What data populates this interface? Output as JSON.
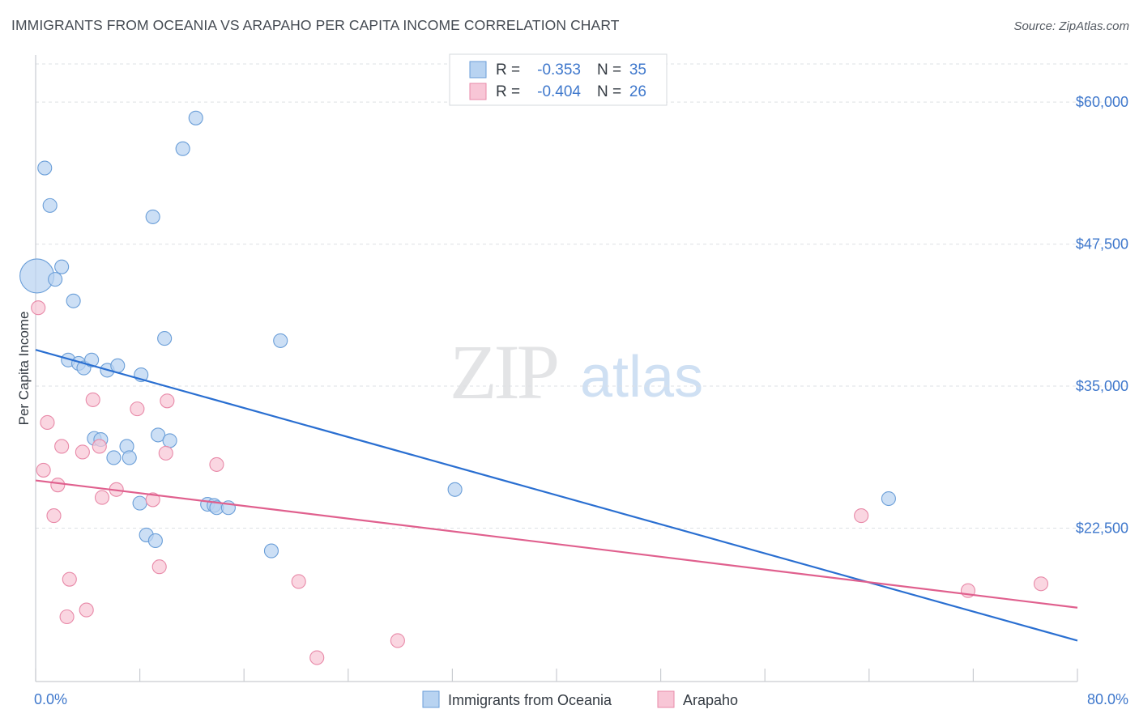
{
  "title": "IMMIGRANTS FROM OCEANIA VS ARAPAHO PER CAPITA INCOME CORRELATION CHART",
  "source": "Source: ZipAtlas.com",
  "watermark": {
    "zip": "ZIP",
    "atlas": "atlas"
  },
  "colors": {
    "blue_fill": "#b8d3f1",
    "blue_stroke": "#6a9ed8",
    "blue_line": "#2a6fd1",
    "pink_fill": "#f8c6d6",
    "pink_stroke": "#e889a8",
    "pink_line": "#e0608e",
    "tick_label": "#3f78cc",
    "grid": "#dde0e4",
    "axis": "#c9ccd1"
  },
  "legend": {
    "r_label": "R =",
    "n_label": "N =",
    "entries": [
      {
        "r": "-0.353",
        "n": "35"
      },
      {
        "r": "-0.404",
        "n": "26"
      }
    ]
  },
  "chart_data": {
    "type": "scatter",
    "title": "IMMIGRANTS FROM OCEANIA VS ARAPAHO PER CAPITA INCOME CORRELATION CHART",
    "xlabel": "",
    "ylabel": "Per Capita Income",
    "xlim": [
      0,
      80
    ],
    "ylim": [
      9000,
      64000
    ],
    "x_tick_labels": [
      {
        "value": 0,
        "label": "0.0%"
      },
      {
        "value": 80,
        "label": "80.0%"
      }
    ],
    "y_ticks": [
      {
        "value": 22500,
        "label": "$22,500"
      },
      {
        "value": 35000,
        "label": "$35,000"
      },
      {
        "value": 47500,
        "label": "$47,500"
      },
      {
        "value": 60000,
        "label": "$60,000"
      }
    ],
    "grid": true,
    "legend_position": "top-center",
    "series": [
      {
        "name": "Immigrants from Oceania",
        "color": "blue",
        "r": -0.353,
        "n": 35,
        "trend": {
          "x0": 0,
          "y0": 38200,
          "x1": 80,
          "y1": 12600
        },
        "points": [
          {
            "x": 0.1,
            "y": 44700,
            "big": true
          },
          {
            "x": 0.7,
            "y": 54200
          },
          {
            "x": 1.1,
            "y": 50900
          },
          {
            "x": 1.5,
            "y": 44400
          },
          {
            "x": 2.0,
            "y": 45500
          },
          {
            "x": 2.9,
            "y": 42500
          },
          {
            "x": 2.5,
            "y": 37300
          },
          {
            "x": 3.3,
            "y": 37000
          },
          {
            "x": 3.7,
            "y": 36600
          },
          {
            "x": 4.3,
            "y": 37300
          },
          {
            "x": 5.5,
            "y": 36400
          },
          {
            "x": 6.3,
            "y": 36800
          },
          {
            "x": 8.1,
            "y": 36000
          },
          {
            "x": 4.5,
            "y": 30400
          },
          {
            "x": 5.0,
            "y": 30300
          },
          {
            "x": 6.0,
            "y": 28700
          },
          {
            "x": 7.0,
            "y": 29700
          },
          {
            "x": 7.2,
            "y": 28700
          },
          {
            "x": 9.4,
            "y": 30700
          },
          {
            "x": 10.3,
            "y": 30200
          },
          {
            "x": 8.0,
            "y": 24700
          },
          {
            "x": 8.5,
            "y": 21900
          },
          {
            "x": 9.2,
            "y": 21400
          },
          {
            "x": 13.2,
            "y": 24600
          },
          {
            "x": 13.7,
            "y": 24500
          },
          {
            "x": 13.9,
            "y": 24300
          },
          {
            "x": 14.8,
            "y": 24300
          },
          {
            "x": 18.1,
            "y": 20500
          },
          {
            "x": 18.8,
            "y": 39000
          },
          {
            "x": 9.9,
            "y": 39200
          },
          {
            "x": 9.0,
            "y": 49900
          },
          {
            "x": 11.3,
            "y": 55900
          },
          {
            "x": 12.3,
            "y": 58600
          },
          {
            "x": 32.2,
            "y": 25900
          },
          {
            "x": 65.5,
            "y": 25100
          }
        ]
      },
      {
        "name": "Arapaho",
        "color": "pink",
        "r": -0.404,
        "n": 26,
        "trend": {
          "x0": 0,
          "y0": 26700,
          "x1": 80,
          "y1": 15500
        },
        "points": [
          {
            "x": 0.2,
            "y": 41900
          },
          {
            "x": 0.9,
            "y": 31800
          },
          {
            "x": 0.6,
            "y": 27600
          },
          {
            "x": 1.7,
            "y": 26300
          },
          {
            "x": 1.4,
            "y": 23600
          },
          {
            "x": 2.0,
            "y": 29700
          },
          {
            "x": 3.6,
            "y": 29200
          },
          {
            "x": 4.4,
            "y": 33800
          },
          {
            "x": 4.9,
            "y": 29700
          },
          {
            "x": 5.1,
            "y": 25200
          },
          {
            "x": 6.2,
            "y": 25900
          },
          {
            "x": 7.8,
            "y": 33000
          },
          {
            "x": 10.1,
            "y": 33700
          },
          {
            "x": 10.0,
            "y": 29100
          },
          {
            "x": 9.0,
            "y": 25000
          },
          {
            "x": 13.9,
            "y": 28100
          },
          {
            "x": 2.6,
            "y": 18000
          },
          {
            "x": 2.4,
            "y": 14700
          },
          {
            "x": 3.9,
            "y": 15300
          },
          {
            "x": 9.5,
            "y": 19100
          },
          {
            "x": 20.2,
            "y": 17800
          },
          {
            "x": 21.6,
            "y": 11100
          },
          {
            "x": 27.8,
            "y": 12600
          },
          {
            "x": 63.4,
            "y": 23600
          },
          {
            "x": 71.6,
            "y": 17000
          },
          {
            "x": 77.2,
            "y": 17600
          }
        ]
      }
    ]
  },
  "bottom_legend": [
    {
      "label": "Immigrants from Oceania"
    },
    {
      "label": "Arapaho"
    }
  ]
}
